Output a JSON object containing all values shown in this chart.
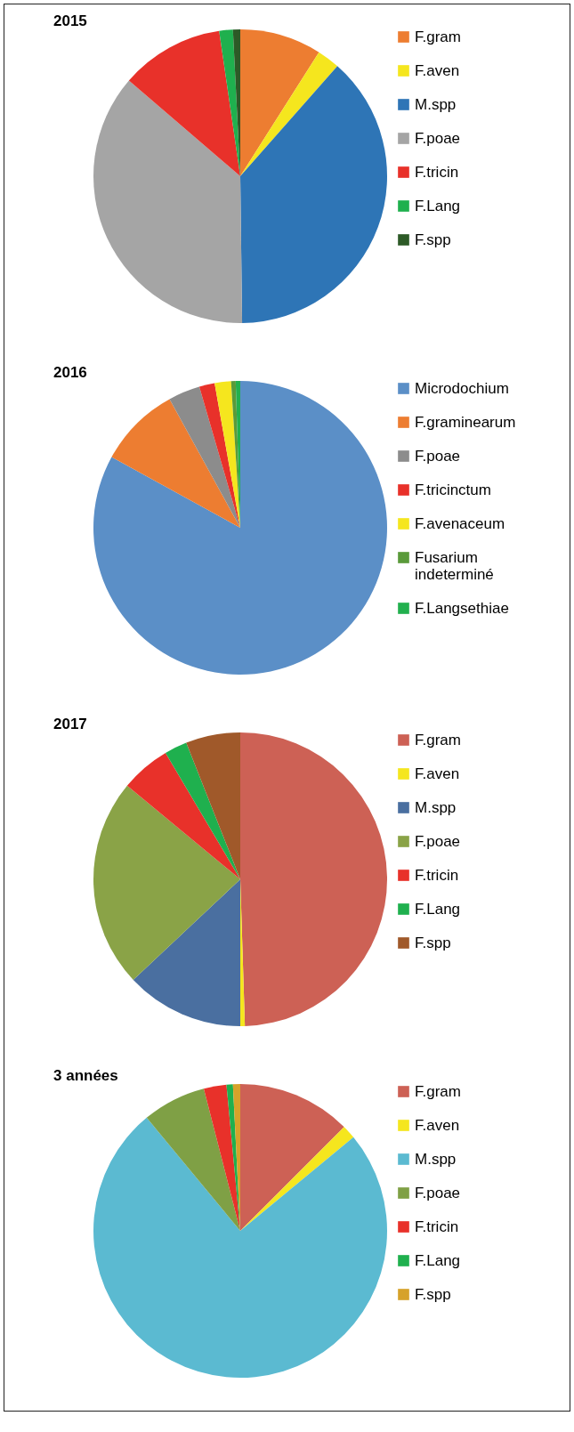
{
  "chart_data": [
    {
      "type": "pie",
      "title": "2015",
      "legend": "right",
      "categories": [
        "F.gram",
        "F.aven",
        "M.spp",
        "F.poae",
        "F.tricin",
        "F.Lang",
        "F.spp"
      ],
      "values": [
        9,
        2.5,
        38.3,
        36.5,
        11.4,
        1.5,
        0.8
      ],
      "colors": [
        "#ed7d31",
        "#f5e61e",
        "#2e75b6",
        "#a5a5a5",
        "#e8312a",
        "#1fb04e",
        "#2d5a27"
      ]
    },
    {
      "type": "pie",
      "title": "2016",
      "legend": "right",
      "categories": [
        "Microdochium",
        "F.graminearum",
        "F.poae",
        "F.tricinctum",
        "F.avenaceum",
        "Fusarium indeterminé",
        "F.Langsethiae"
      ],
      "values": [
        83,
        9,
        3.5,
        1.7,
        1.8,
        0.5,
        0.5
      ],
      "colors": [
        "#5b8fc7",
        "#ed7d31",
        "#8c8c8c",
        "#e8312a",
        "#f5e61e",
        "#5a9a3a",
        "#22b04e"
      ]
    },
    {
      "type": "pie",
      "title": "2017",
      "legend": "right",
      "categories": [
        "F.gram",
        "F.aven",
        "M.spp",
        "F.poae",
        "F.tricin",
        "F.Lang",
        "F.spp"
      ],
      "values": [
        49.5,
        0.5,
        13,
        23,
        5.5,
        2.5,
        6
      ],
      "colors": [
        "#cd6155",
        "#f5e61e",
        "#4a6fa0",
        "#8aa347",
        "#e8312a",
        "#1fb04e",
        "#a0592a"
      ]
    },
    {
      "type": "pie",
      "title": "3 années",
      "legend": "right",
      "categories": [
        "F.gram",
        "F.aven",
        "M.spp",
        "F.poae",
        "F.tricin",
        "F.Lang",
        "F.spp"
      ],
      "values": [
        12.5,
        1.5,
        75,
        7,
        2.5,
        0.7,
        0.8
      ],
      "colors": [
        "#cd6155",
        "#f5e61e",
        "#5bbad1",
        "#7fa045",
        "#e8312a",
        "#1fb04e",
        "#d6a22a"
      ]
    }
  ]
}
